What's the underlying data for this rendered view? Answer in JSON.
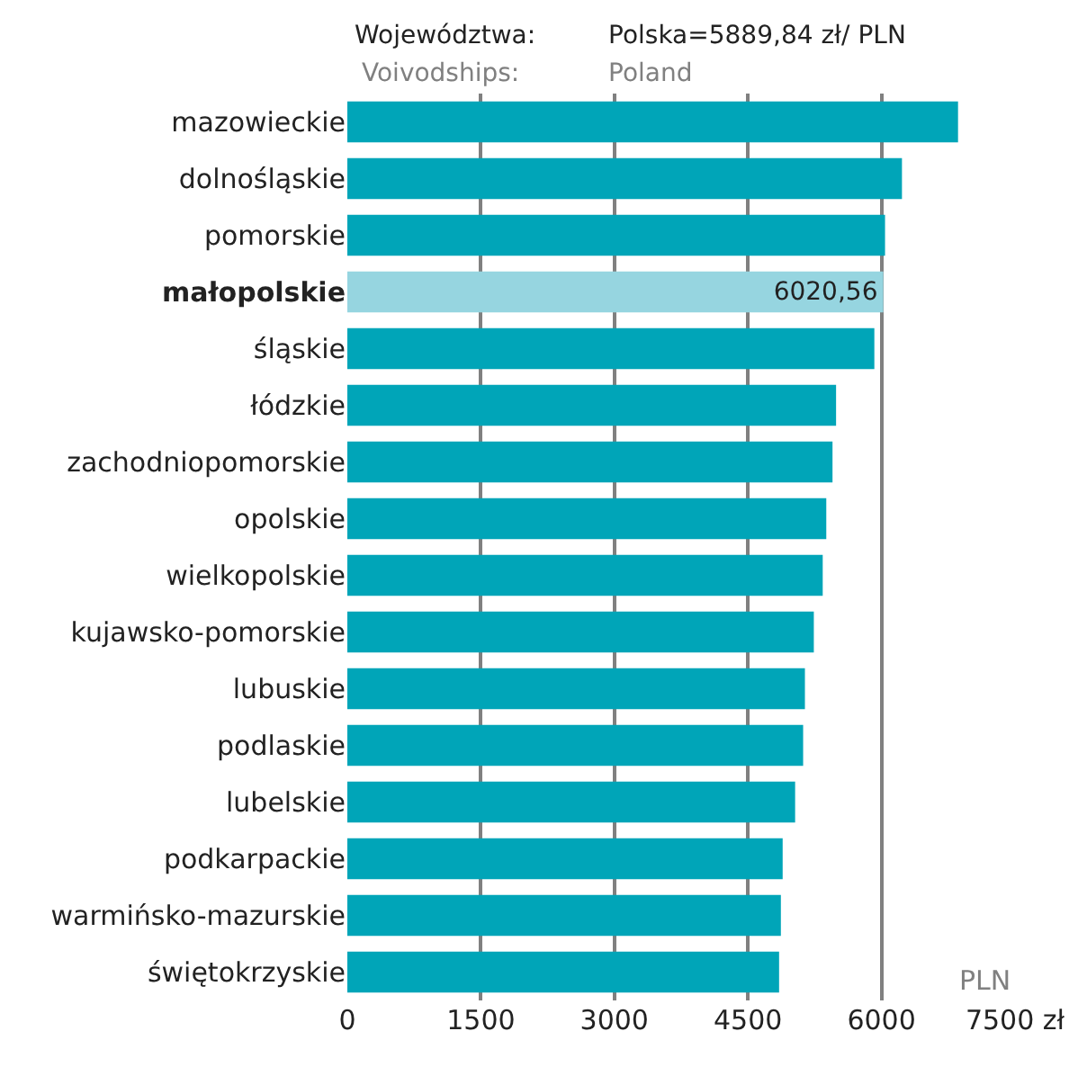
{
  "chart_data": {
    "type": "bar",
    "orientation": "horizontal",
    "title": "Polska=5889,84 zł/ PLN",
    "subtitle": "Poland",
    "ylabel": "Województwa:",
    "xlabel": "PLN",
    "annotations": [
      "Voivodships:"
    ],
    "categories": [
      "mazowieckie",
      "dolnośląskie",
      "pomorskie",
      "małopolskie",
      "śląskie",
      "łódzkie",
      "zachodniopomorskie",
      "opolskie",
      "wielkopolskie",
      "kujawsko-pomorskie",
      "lubuskie",
      "podlaskie",
      "lubelskie",
      "podkarpackie",
      "warmińsko-mazurskie",
      "świętokrzyskie"
    ],
    "values": [
      6860,
      6230,
      6040,
      6020.56,
      5920,
      5490,
      5450,
      5380,
      5340,
      5240,
      5140,
      5120,
      5030,
      4890,
      4870,
      4850
    ],
    "colors": [
      "#00a5b8",
      "#00a5b8",
      "#00a5b8",
      "#96d5e0",
      "#00a5b8",
      "#00a5b8",
      "#00a5b8",
      "#00a5b8",
      "#00a5b8",
      "#00a5b8",
      "#00a5b8",
      "#00a5b8",
      "#00a5b8",
      "#00a5b8",
      "#00a5b8",
      "#00a5b8"
    ],
    "value_labels": [
      null,
      null,
      null,
      "6020,56",
      null,
      null,
      null,
      null,
      null,
      null,
      null,
      null,
      null,
      null,
      null,
      null
    ],
    "xlim": [
      0,
      7500
    ],
    "xticks": [
      0,
      1500,
      3000,
      4500,
      6000,
      {
        "value": 7500,
        "label": "7500 zł"
      }
    ],
    "grid": "x"
  }
}
